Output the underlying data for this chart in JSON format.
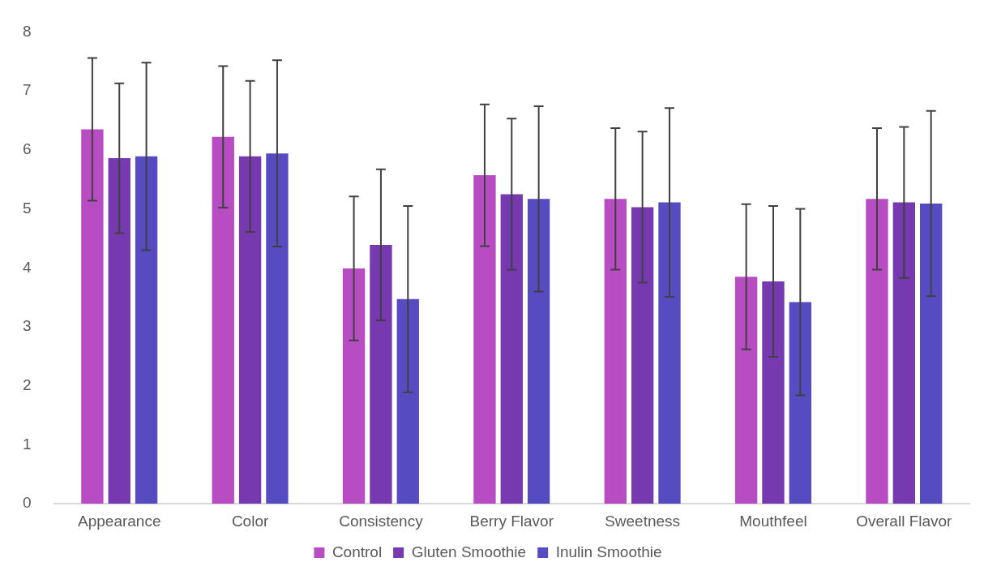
{
  "chart_data": {
    "type": "bar",
    "categories": [
      "Appearance",
      "Color",
      "Consistency",
      "Berry Flavor",
      "Sweetness",
      "Mouthfeel",
      "Overall Flavor"
    ],
    "series": [
      {
        "name": "Control",
        "color": "#b84cc2",
        "values": [
          6.35,
          6.22,
          3.99,
          5.57,
          5.17,
          3.85,
          5.17
        ],
        "errors": [
          1.21,
          1.2,
          1.22,
          1.2,
          1.2,
          1.23,
          1.2
        ]
      },
      {
        "name": "Gluten Smoothie",
        "color": "#7639b0",
        "values": [
          5.86,
          5.89,
          4.39,
          5.25,
          5.03,
          3.77,
          5.11
        ],
        "errors": [
          1.27,
          1.28,
          1.28,
          1.28,
          1.28,
          1.28,
          1.28
        ]
      },
      {
        "name": "Inulin Smoothie",
        "color": "#574bc2",
        "values": [
          5.89,
          5.94,
          3.47,
          5.17,
          5.11,
          3.42,
          5.09
        ],
        "errors": [
          1.59,
          1.58,
          1.58,
          1.57,
          1.6,
          1.58,
          1.57
        ]
      }
    ],
    "ylim": [
      0,
      8
    ],
    "yticks": [
      0,
      1,
      2,
      3,
      4,
      5,
      6,
      7,
      8
    ],
    "grid": false,
    "legend": "bottom"
  }
}
